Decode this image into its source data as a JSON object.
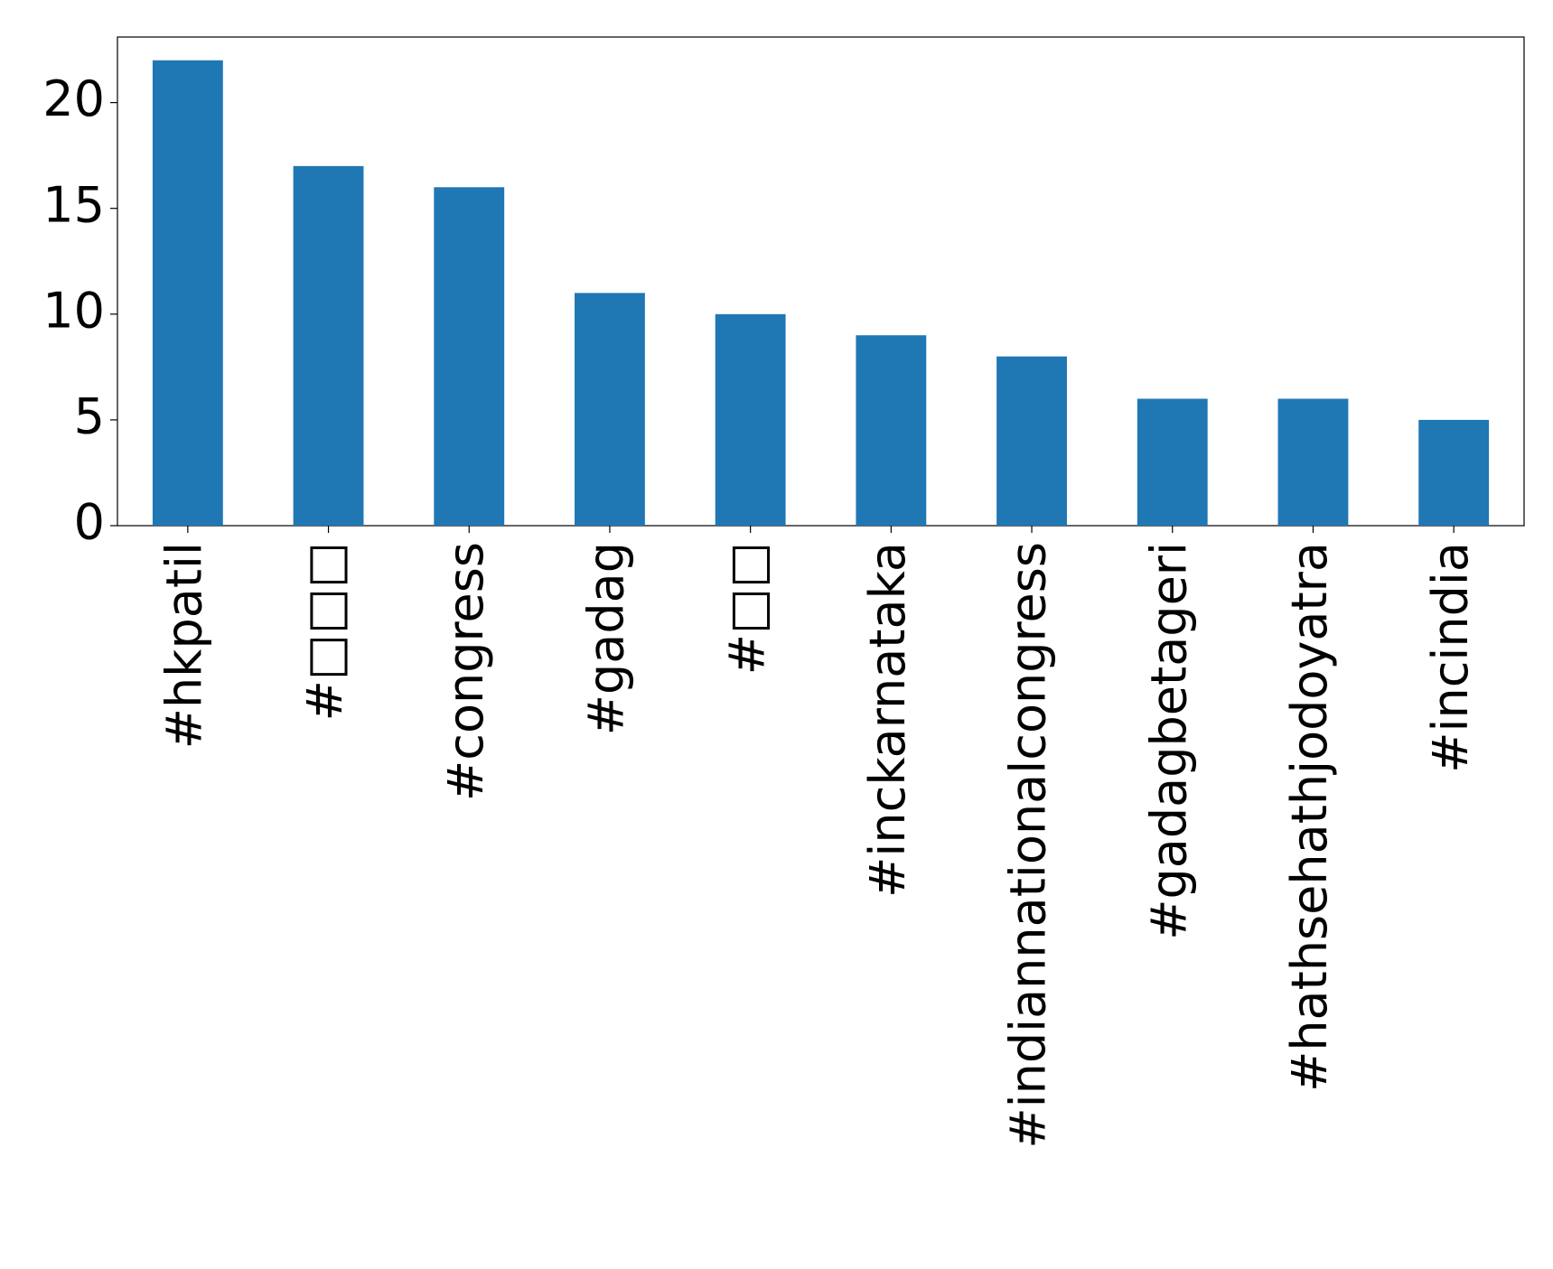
{
  "chart_data": {
    "type": "bar",
    "categories": [
      "#hkpatil",
      "#□□□",
      "#congress",
      "#gadag",
      "#□□",
      "#inckarnataka",
      "#indiannationalcongress",
      "#gadagbetageri",
      "#hathsehathjodoyatra",
      "#incindia"
    ],
    "values": [
      22,
      17,
      16,
      11,
      10,
      9,
      8,
      6,
      6,
      5
    ],
    "color": "#1f77b4",
    "ylim": [
      0,
      23.1
    ],
    "yticks": [
      0,
      5,
      10,
      15,
      20
    ],
    "grid": false
  }
}
